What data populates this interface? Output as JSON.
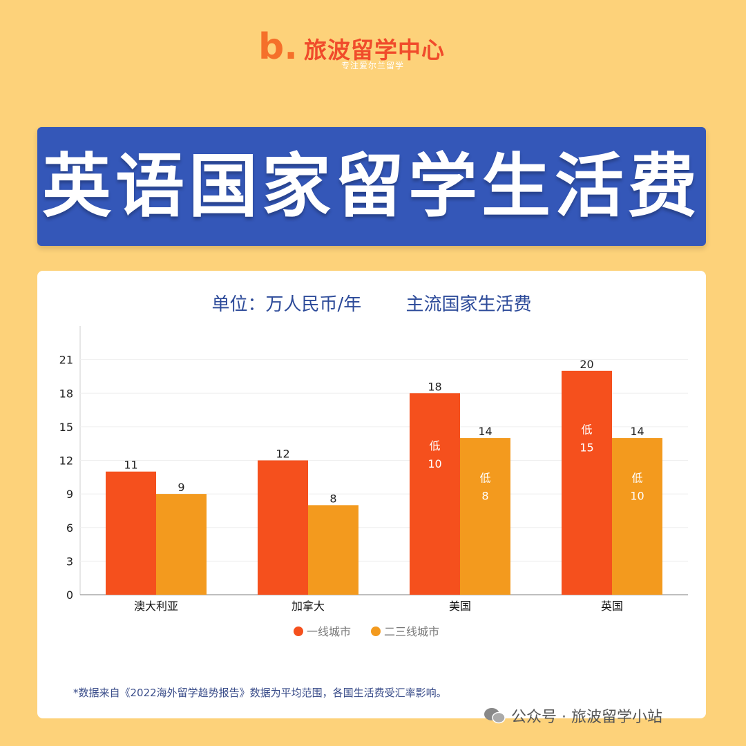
{
  "brand": {
    "mark": "b.",
    "name": "旅波留学中心",
    "tagline": "专注爱尔兰留学"
  },
  "banner": {
    "title": "英语国家留学生活费"
  },
  "subtitle": {
    "unit": "单位：万人民币/年",
    "title": "主流国家生活费"
  },
  "chart_data": {
    "type": "bar",
    "categories": [
      "澳大利亚",
      "加拿大",
      "美国",
      "英国"
    ],
    "series": [
      {
        "name": "一线城市",
        "color": "#f5501d",
        "values": [
          11,
          12,
          18,
          20
        ],
        "inner_labels": [
          null,
          null,
          "低\n10",
          "低\n15"
        ]
      },
      {
        "name": "二三线城市",
        "color": "#f39a1e",
        "values": [
          9,
          8,
          14,
          14
        ],
        "inner_labels": [
          null,
          null,
          "低\n8",
          "低\n10"
        ]
      }
    ],
    "y_ticks": [
      0,
      3,
      6,
      9,
      12,
      15,
      18,
      21
    ],
    "ylim": [
      0,
      24
    ],
    "grid": true,
    "legend": "bottom-center"
  },
  "footnote": "*数据来自《2022海外留学趋势报告》数据为平均范围，各国生活费受汇率影响。",
  "watermark": "公众号 · 旅波留学小站"
}
